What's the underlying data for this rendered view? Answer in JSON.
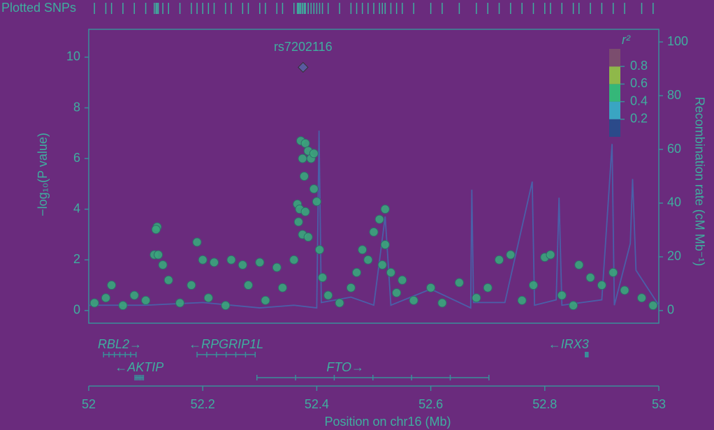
{
  "chart_data": {
    "type": "scatter",
    "rug_label": "Plotted SNPs",
    "y_label": "−log₁₀(P value)",
    "y2_label": "Recombination rate (cM Mb⁻¹)",
    "x_label": "Position on chr16 (Mb)",
    "xlim": [
      52,
      53
    ],
    "xticks": [
      52,
      52.2,
      52.4,
      52.6,
      52.8,
      53
    ],
    "ylim": [
      -0.5,
      11.1
    ],
    "yticks": [
      0,
      2,
      4,
      6,
      8,
      10
    ],
    "y2lim": [
      -4.7,
      104.7
    ],
    "y2ticks": [
      0,
      20,
      40,
      60,
      80,
      100
    ],
    "lead": {
      "label": "rs7202116",
      "x": 52.376,
      "y": 9.6,
      "color": "#5a5aa0"
    },
    "points": {
      "color": "#3aa67c",
      "x": [
        52.04,
        52.12,
        52.118,
        52.115,
        52.122,
        52.13,
        52.19,
        52.2,
        52.22,
        52.25,
        52.27,
        52.3,
        52.33,
        52.18,
        52.366,
        52.37,
        52.368,
        52.375,
        52.38,
        52.385,
        52.36,
        52.372,
        52.38,
        52.385,
        52.39,
        52.375,
        52.395,
        52.395,
        52.4,
        52.378,
        52.405,
        52.41,
        52.47,
        52.48,
        52.49,
        52.5,
        52.51,
        52.52,
        52.52,
        52.515,
        52.53,
        52.55,
        52.72,
        52.74,
        52.8,
        52.81,
        52.86,
        52.92,
        52.88,
        52.9,
        52.01,
        52.03,
        52.06,
        52.08,
        52.1,
        52.14,
        52.16,
        52.21,
        52.24,
        52.28,
        52.31,
        52.34,
        52.42,
        52.44,
        52.46,
        52.54,
        52.57,
        52.6,
        52.62,
        52.65,
        52.68,
        52.7,
        52.76,
        52.78,
        52.83,
        52.85,
        52.94,
        52.97,
        52.99
      ],
      "y": [
        1.0,
        3.3,
        3.2,
        2.2,
        2.2,
        1.8,
        2.7,
        2.0,
        1.9,
        2.0,
        1.8,
        1.9,
        1.7,
        1.0,
        4.2,
        4.0,
        3.5,
        3.0,
        3.9,
        2.9,
        2.0,
        6.7,
        6.6,
        6.3,
        6.0,
        6.0,
        6.2,
        4.8,
        4.3,
        5.3,
        2.4,
        1.3,
        1.5,
        2.4,
        2.0,
        3.1,
        3.6,
        4.0,
        2.6,
        1.8,
        1.5,
        1.2,
        2.0,
        2.2,
        2.1,
        2.2,
        1.8,
        1.5,
        1.3,
        1.0,
        0.3,
        0.5,
        0.2,
        0.6,
        0.4,
        1.2,
        0.3,
        0.5,
        0.2,
        1.0,
        0.4,
        0.9,
        0.6,
        0.3,
        0.9,
        0.7,
        0.4,
        0.9,
        0.3,
        1.1,
        0.5,
        0.9,
        0.4,
        1.0,
        0.6,
        0.2,
        0.8,
        0.5,
        0.2
      ]
    },
    "recombination": {
      "axis": "y2",
      "color": "#4a5fa8",
      "x": [
        52,
        52.1,
        52.2,
        52.3,
        52.36,
        52.4,
        52.404,
        52.408,
        52.46,
        52.5,
        52.52,
        52.53,
        52.6,
        52.67,
        52.672,
        52.675,
        52.73,
        52.778,
        52.782,
        52.82,
        52.825,
        52.83,
        52.9,
        52.918,
        52.922,
        52.95,
        52.954,
        52.96,
        53
      ],
      "values": [
        2,
        2,
        3,
        1,
        2,
        1,
        67,
        3,
        5,
        2,
        35,
        2,
        8,
        1,
        45,
        3,
        3,
        48,
        2,
        4,
        42,
        2,
        4,
        62,
        2,
        25,
        49,
        15,
        2
      ]
    },
    "colorbar": {
      "label": "r²",
      "lim": [
        0,
        1
      ],
      "ticks": [
        0.2,
        0.4,
        0.6,
        0.8
      ],
      "colors": [
        "#2b4a8a",
        "#3aa5c2",
        "#35b779",
        "#8fb84a",
        "#7b4d6e"
      ]
    },
    "genes": [
      {
        "label": "RBL2→",
        "start": 52.026,
        "end": 52.083
      },
      {
        "label": "←AKTIP",
        "start": 52.081,
        "end": 52.096
      },
      {
        "label": "←RPGRIP1L",
        "start": 52.19,
        "end": 52.292
      },
      {
        "label": "FTO→",
        "start": 52.295,
        "end": 52.702
      },
      {
        "label": "←IRX3",
        "start": 52.871,
        "end": 52.876
      }
    ]
  }
}
